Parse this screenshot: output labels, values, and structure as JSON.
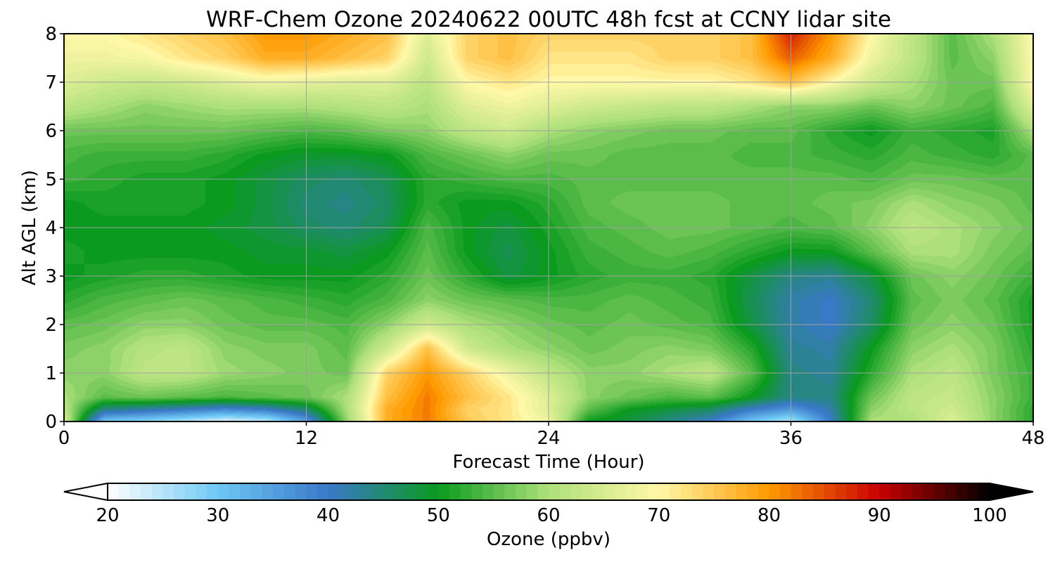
{
  "chart_data": {
    "type": "heatmap",
    "title": "WRF-Chem Ozone  20240622 00UTC 48h fcst at CCNY lidar site",
    "xlabel": "Forecast Time (Hour)",
    "ylabel": "Alt AGL (km)",
    "xlim": [
      0,
      48
    ],
    "ylim": [
      0,
      8
    ],
    "x_ticks": [
      "0",
      "12",
      "24",
      "36",
      "48"
    ],
    "y_ticks": [
      "0",
      "1",
      "2",
      "3",
      "4",
      "5",
      "6",
      "7",
      "8"
    ],
    "grid": true,
    "z_label": "Ozone  (ppbv)",
    "z_range": [
      20,
      100
    ],
    "colorbar_ticks": [
      "20",
      "30",
      "40",
      "50",
      "60",
      "70",
      "80",
      "90",
      "100"
    ],
    "colorbar_extend": "both",
    "colorbar_placement": "bottom",
    "colormap": [
      "#ffffff",
      "#6ec8f5",
      "#3a78c8",
      "#0a9a1e",
      "#aee07a",
      "#fff8a8",
      "#ff9a00",
      "#c80000",
      "#000000"
    ],
    "x": [
      0,
      2,
      4,
      6,
      8,
      10,
      12,
      14,
      16,
      18,
      20,
      22,
      24,
      26,
      28,
      30,
      32,
      34,
      36,
      38,
      40,
      42,
      44,
      46,
      48
    ],
    "y": [
      0,
      0.25,
      0.5,
      1,
      1.5,
      2,
      2.5,
      3,
      3.5,
      4,
      4.5,
      5,
      5.5,
      6,
      6.5,
      7,
      7.5,
      8
    ],
    "z": [
      [
        65,
        30,
        28,
        25,
        22,
        24,
        35,
        58,
        78,
        82,
        75,
        72,
        68,
        50,
        48,
        44,
        40,
        30,
        25,
        40,
        60,
        60,
        66,
        58,
        52
      ],
      [
        62,
        44,
        42,
        40,
        38,
        40,
        45,
        60,
        78,
        82,
        74,
        72,
        66,
        55,
        50,
        48,
        46,
        40,
        36,
        42,
        58,
        62,
        64,
        58,
        52
      ],
      [
        60,
        55,
        56,
        55,
        54,
        55,
        56,
        60,
        76,
        82,
        76,
        72,
        66,
        58,
        56,
        54,
        55,
        50,
        44,
        44,
        56,
        62,
        63,
        58,
        53
      ],
      [
        58,
        58,
        62,
        62,
        59,
        58,
        57,
        56,
        74,
        80,
        74,
        68,
        62,
        58,
        58,
        60,
        62,
        55,
        44,
        43,
        52,
        60,
        62,
        57,
        53
      ],
      [
        57,
        58,
        61,
        62,
        58,
        57,
        57,
        55,
        64,
        76,
        64,
        60,
        58,
        56,
        57,
        58,
        57,
        52,
        43,
        42,
        50,
        58,
        60,
        57,
        52
      ],
      [
        55,
        56,
        58,
        58,
        56,
        55,
        55,
        54,
        58,
        64,
        60,
        58,
        56,
        55,
        56,
        55,
        54,
        48,
        42,
        40,
        46,
        56,
        58,
        56,
        51
      ],
      [
        52,
        54,
        55,
        56,
        55,
        54,
        53,
        52,
        54,
        58,
        56,
        55,
        54,
        54,
        55,
        54,
        53,
        47,
        42,
        40,
        45,
        55,
        57,
        55,
        51
      ],
      [
        50,
        51,
        52,
        52,
        51,
        50,
        50,
        50,
        52,
        56,
        52,
        48,
        50,
        52,
        53,
        53,
        52,
        48,
        44,
        43,
        48,
        56,
        58,
        56,
        53
      ],
      [
        51,
        50,
        50,
        50,
        50,
        49,
        49,
        48,
        50,
        55,
        50,
        47,
        50,
        53,
        54,
        55,
        54,
        52,
        50,
        50,
        55,
        60,
        60,
        57,
        55
      ],
      [
        50,
        50,
        50,
        50,
        49,
        48,
        46,
        45,
        47,
        54,
        50,
        48,
        51,
        54,
        55,
        56,
        56,
        55,
        54,
        55,
        58,
        62,
        60,
        58,
        56
      ],
      [
        50,
        51,
        51,
        51,
        50,
        48,
        45,
        44,
        46,
        52,
        50,
        50,
        52,
        55,
        56,
        56,
        56,
        55,
        55,
        56,
        57,
        60,
        58,
        57,
        55
      ],
      [
        53,
        52,
        51,
        51,
        50,
        48,
        46,
        45,
        47,
        52,
        53,
        54,
        54,
        55,
        55,
        55,
        55,
        55,
        55,
        55,
        54,
        56,
        56,
        55,
        55
      ],
      [
        54,
        53,
        53,
        53,
        52,
        50,
        49,
        49,
        50,
        54,
        56,
        58,
        56,
        56,
        55,
        55,
        55,
        54,
        54,
        53,
        52,
        54,
        53,
        52,
        55
      ],
      [
        56,
        56,
        56,
        56,
        56,
        55,
        54,
        55,
        57,
        58,
        62,
        64,
        60,
        58,
        57,
        56,
        56,
        55,
        55,
        52,
        50,
        53,
        52,
        51,
        60
      ],
      [
        62,
        60,
        58,
        59,
        60,
        60,
        60,
        61,
        62,
        60,
        66,
        68,
        66,
        64,
        63,
        62,
        62,
        60,
        58,
        58,
        56,
        58,
        56,
        54,
        66
      ],
      [
        66,
        64,
        63,
        64,
        66,
        68,
        67,
        66,
        66,
        62,
        70,
        72,
        70,
        70,
        70,
        70,
        70,
        72,
        76,
        70,
        64,
        60,
        56,
        56,
        70
      ],
      [
        68,
        68,
        69,
        72,
        74,
        78,
        78,
        76,
        74,
        64,
        74,
        76,
        72,
        72,
        72,
        74,
        74,
        76,
        84,
        78,
        68,
        62,
        55,
        58,
        70
      ],
      [
        70,
        70,
        72,
        74,
        76,
        80,
        80,
        78,
        76,
        66,
        74,
        76,
        74,
        74,
        74,
        74,
        74,
        76,
        88,
        80,
        70,
        62,
        55,
        60,
        70
      ]
    ]
  }
}
